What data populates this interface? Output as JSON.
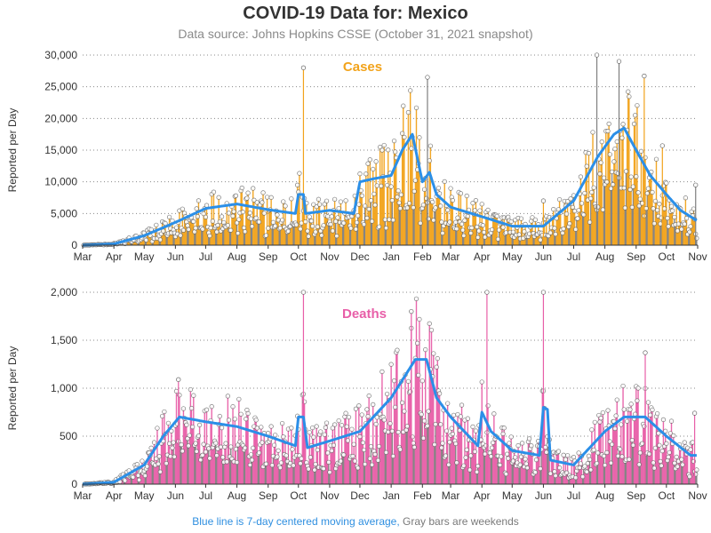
{
  "title": "COVID-19 Data for: Mexico",
  "subtitle": "Data source: Johns Hopkins CSSE (October 31, 2021 snapshot)",
  "footer": {
    "ma_note": "Blue line is 7-day centered moving average,",
    "weekend_note": "Gray bars are weekends"
  },
  "colors": {
    "cases": "#f2a31b",
    "deaths": "#e85fa8",
    "moving_average": "#2b8fe8",
    "weekend": "#7f7f7f",
    "grid": "#888888"
  },
  "chart_data": [
    {
      "type": "bar",
      "panel_label": "Cases",
      "ylabel": "Reported per Day",
      "ylim": [
        0,
        30000
      ],
      "yticks": [
        0,
        5000,
        10000,
        15000,
        20000,
        25000,
        30000
      ],
      "ytick_labels": [
        "0",
        "5,000",
        "10,000",
        "15,000",
        "20,000",
        "25,000",
        "30,000"
      ],
      "xlim": [
        "2020-03-01",
        "2021-11-01"
      ],
      "month_ticks": [
        "Mar",
        "Apr",
        "May",
        "Jun",
        "Jul",
        "Aug",
        "Sep",
        "Oct",
        "Nov",
        "Dec",
        "Jan",
        "Feb",
        "Mar",
        "Apr",
        "May",
        "Jun",
        "Jul",
        "Aug",
        "Sep",
        "Oct",
        "Nov"
      ],
      "grid": "horizontal dotted",
      "moving_average_anchors": [
        [
          "2020-03-01",
          0
        ],
        [
          "2020-04-01",
          200
        ],
        [
          "2020-05-01",
          1500
        ],
        [
          "2020-06-01",
          3600
        ],
        [
          "2020-07-01",
          5800
        ],
        [
          "2020-08-01",
          6500
        ],
        [
          "2020-09-01",
          5600
        ],
        [
          "2020-09-28",
          5000
        ],
        [
          "2020-10-01",
          8000
        ],
        [
          "2020-10-06",
          8000
        ],
        [
          "2020-10-08",
          5000
        ],
        [
          "2020-11-01",
          5500
        ],
        [
          "2020-11-25",
          5000
        ],
        [
          "2020-12-01",
          10000
        ],
        [
          "2020-12-15",
          10500
        ],
        [
          "2021-01-01",
          11000
        ],
        [
          "2021-01-12",
          15000
        ],
        [
          "2021-01-22",
          17500
        ],
        [
          "2021-02-01",
          10000
        ],
        [
          "2021-02-08",
          11500
        ],
        [
          "2021-02-15",
          8000
        ],
        [
          "2021-03-01",
          6000
        ],
        [
          "2021-04-01",
          4500
        ],
        [
          "2021-05-01",
          3000
        ],
        [
          "2021-06-01",
          3000
        ],
        [
          "2021-07-01",
          7000
        ],
        [
          "2021-07-25",
          14000
        ],
        [
          "2021-08-10",
          17500
        ],
        [
          "2021-08-20",
          18500
        ],
        [
          "2021-09-01",
          15000
        ],
        [
          "2021-09-15",
          11000
        ],
        [
          "2021-10-01",
          8000
        ],
        [
          "2021-10-15",
          5500
        ],
        [
          "2021-11-01",
          3800
        ]
      ],
      "spikes": [
        [
          "2020-10-06",
          28000
        ],
        [
          "2021-02-06",
          26500
        ],
        [
          "2021-07-24",
          30000
        ],
        [
          "2021-08-15",
          29000
        ],
        [
          "2021-09-09",
          26700
        ],
        [
          "2021-09-27",
          15700
        ],
        [
          "2021-06-01",
          7000
        ],
        [
          "2021-10-30",
          9500
        ]
      ]
    },
    {
      "type": "bar",
      "panel_label": "Deaths",
      "ylabel": "Reported per Day",
      "ylim": [
        0,
        2000
      ],
      "yticks": [
        0,
        500,
        1000,
        1500,
        2000
      ],
      "ytick_labels": [
        "0",
        "500",
        "1,000",
        "1,500",
        "2,000"
      ],
      "xlim": [
        "2020-03-01",
        "2021-11-01"
      ],
      "month_ticks": [
        "Mar",
        "Apr",
        "May",
        "Jun",
        "Jul",
        "Aug",
        "Sep",
        "Oct",
        "Nov",
        "Dec",
        "Jan",
        "Feb",
        "Mar",
        "Apr",
        "May",
        "Jun",
        "Jul",
        "Aug",
        "Sep",
        "Oct",
        "Nov"
      ],
      "grid": "horizontal dotted",
      "moving_average_anchors": [
        [
          "2020-03-01",
          0
        ],
        [
          "2020-04-01",
          20
        ],
        [
          "2020-05-01",
          200
        ],
        [
          "2020-05-20",
          500
        ],
        [
          "2020-06-05",
          700
        ],
        [
          "2020-07-01",
          650
        ],
        [
          "2020-08-01",
          600
        ],
        [
          "2020-09-01",
          500
        ],
        [
          "2020-09-28",
          400
        ],
        [
          "2020-10-01",
          700
        ],
        [
          "2020-10-06",
          700
        ],
        [
          "2020-10-10",
          380
        ],
        [
          "2020-11-01",
          450
        ],
        [
          "2020-12-01",
          550
        ],
        [
          "2021-01-01",
          900
        ],
        [
          "2021-01-25",
          1300
        ],
        [
          "2021-02-05",
          1300
        ],
        [
          "2021-02-15",
          900
        ],
        [
          "2021-03-01",
          700
        ],
        [
          "2021-03-28",
          400
        ],
        [
          "2021-04-01",
          750
        ],
        [
          "2021-04-10",
          550
        ],
        [
          "2021-05-01",
          350
        ],
        [
          "2021-05-28",
          300
        ],
        [
          "2021-06-01",
          800
        ],
        [
          "2021-06-05",
          780
        ],
        [
          "2021-06-08",
          250
        ],
        [
          "2021-07-01",
          200
        ],
        [
          "2021-08-01",
          550
        ],
        [
          "2021-08-20",
          700
        ],
        [
          "2021-09-10",
          700
        ],
        [
          "2021-10-01",
          500
        ],
        [
          "2021-10-25",
          300
        ],
        [
          "2021-11-01",
          300
        ]
      ],
      "spikes": [
        [
          "2020-06-04",
          1090
        ],
        [
          "2020-10-06",
          2000
        ],
        [
          "2021-01-21",
          1800
        ],
        [
          "2021-04-06",
          2000
        ],
        [
          "2021-06-01",
          2000
        ],
        [
          "2021-09-10",
          1370
        ],
        [
          "2021-10-29",
          740
        ]
      ]
    }
  ]
}
